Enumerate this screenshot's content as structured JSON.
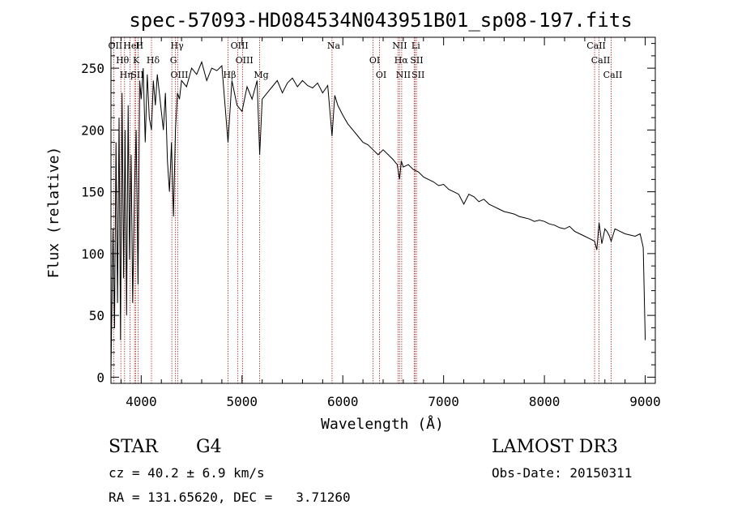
{
  "chart_data": {
    "type": "line",
    "title": "spec-57093-HD084534N043951B01_sp08-197.fits",
    "xlabel": "Wavelength (Å)",
    "ylabel": "Flux (relative)",
    "xlim": [
      3700,
      9100
    ],
    "ylim": [
      -5,
      275
    ],
    "xticks": [
      4000,
      5000,
      6000,
      7000,
      8000,
      9000
    ],
    "yticks": [
      0,
      50,
      100,
      150,
      200,
      250
    ],
    "xtick_labels": [
      "4000",
      "5000",
      "6000",
      "7000",
      "8000",
      "9000"
    ],
    "ytick_labels": [
      "0",
      "50",
      "100",
      "150",
      "200",
      "250"
    ],
    "grid": false,
    "series": [
      {
        "name": "flux",
        "x": [
          3700,
          3720,
          3735,
          3750,
          3765,
          3780,
          3795,
          3810,
          3825,
          3840,
          3855,
          3870,
          3885,
          3900,
          3915,
          3933,
          3950,
          3968,
          3985,
          4000,
          4020,
          4040,
          4060,
          4080,
          4102,
          4120,
          4140,
          4160,
          4180,
          4200,
          4220,
          4240,
          4260,
          4280,
          4300,
          4320,
          4340,
          4360,
          4380,
          4400,
          4450,
          4500,
          4550,
          4600,
          4650,
          4700,
          4750,
          4800,
          4861,
          4900,
          4950,
          5000,
          5050,
          5100,
          5150,
          5175,
          5200,
          5250,
          5300,
          5350,
          5400,
          5450,
          5500,
          5550,
          5600,
          5650,
          5700,
          5750,
          5800,
          5850,
          5893,
          5920,
          5950,
          6000,
          6050,
          6100,
          6150,
          6200,
          6250,
          6300,
          6350,
          6400,
          6450,
          6500,
          6540,
          6563,
          6580,
          6600,
          6650,
          6700,
          6750,
          6800,
          6850,
          6900,
          6950,
          7000,
          7050,
          7100,
          7150,
          7200,
          7250,
          7300,
          7350,
          7400,
          7450,
          7500,
          7550,
          7600,
          7650,
          7700,
          7750,
          7800,
          7850,
          7900,
          7950,
          8000,
          8050,
          8100,
          8150,
          8200,
          8250,
          8300,
          8350,
          8400,
          8450,
          8498,
          8520,
          8542,
          8570,
          8600,
          8620,
          8640,
          8662,
          8700,
          8750,
          8800,
          8850,
          8900,
          8950,
          8980,
          9000
        ],
        "values": [
          5,
          120,
          40,
          190,
          60,
          210,
          30,
          230,
          80,
          200,
          50,
          220,
          95,
          180,
          60,
          150,
          200,
          75,
          240,
          225,
          250,
          190,
          245,
          210,
          200,
          240,
          220,
          245,
          230,
          215,
          200,
          230,
          175,
          150,
          190,
          130,
          200,
          230,
          225,
          240,
          235,
          250,
          245,
          255,
          240,
          250,
          248,
          252,
          190,
          240,
          220,
          215,
          235,
          225,
          240,
          180,
          225,
          230,
          235,
          240,
          230,
          238,
          242,
          235,
          240,
          236,
          234,
          238,
          230,
          236,
          195,
          228,
          220,
          212,
          205,
          200,
          195,
          190,
          188,
          184,
          180,
          184,
          180,
          176,
          172,
          160,
          175,
          170,
          172,
          168,
          166,
          162,
          160,
          158,
          155,
          156,
          152,
          150,
          148,
          140,
          148,
          146,
          142,
          144,
          140,
          138,
          136,
          134,
          133,
          132,
          130,
          129,
          128,
          126,
          127,
          126,
          124,
          123,
          121,
          120,
          122,
          118,
          116,
          114,
          112,
          110,
          103,
          125,
          108,
          120,
          118,
          115,
          110,
          120,
          118,
          116,
          115,
          114,
          116,
          105,
          30
        ]
      }
    ],
    "lines": [
      {
        "name": "OII",
        "wavelength": 3727
      },
      {
        "name": "Hθ",
        "wavelength": 3798
      },
      {
        "name": "Hη",
        "wavelength": 3835
      },
      {
        "name": "HeI",
        "wavelength": 3889
      },
      {
        "name": "K",
        "wavelength": 3934
      },
      {
        "name": "SII",
        "wavelength": 3945
      },
      {
        "name": "H",
        "wavelength": 3968
      },
      {
        "name": "Hδ",
        "wavelength": 4102
      },
      {
        "name": "OIII",
        "wavelength": 4363
      },
      {
        "name": "Hγ",
        "wavelength": 4340
      },
      {
        "name": "G",
        "wavelength": 4304
      },
      {
        "name": "Hβ",
        "wavelength": 4861
      },
      {
        "name": "OIII",
        "wavelength": 4959
      },
      {
        "name": "OIII",
        "wavelength": 5007
      },
      {
        "name": "Mg",
        "wavelength": 5175
      },
      {
        "name": "Na",
        "wavelength": 5893
      },
      {
        "name": "OI",
        "wavelength": 6300
      },
      {
        "name": "OI",
        "wavelength": 6364
      },
      {
        "name": "NII",
        "wavelength": 6548
      },
      {
        "name": "Hα",
        "wavelength": 6563
      },
      {
        "name": "NII",
        "wavelength": 6584
      },
      {
        "name": "Li",
        "wavelength": 6708
      },
      {
        "name": "SII",
        "wavelength": 6717
      },
      {
        "name": "SII",
        "wavelength": 6731
      },
      {
        "name": "CaII",
        "wavelength": 8498
      },
      {
        "name": "CaII",
        "wavelength": 8542
      },
      {
        "name": "CaII",
        "wavelength": 8662
      }
    ]
  },
  "info": {
    "object_class": "STAR",
    "subclass": "G4",
    "survey": "LAMOST DR3",
    "redshift": "cz = 40.2 ± 6.9 km/s",
    "obs_date": "Obs-Date: 20150311",
    "coords": "RA = 131.65620, DEC =   3.71260"
  },
  "colors": {
    "line_marker": "#b22222",
    "spectrum": "#000000"
  }
}
